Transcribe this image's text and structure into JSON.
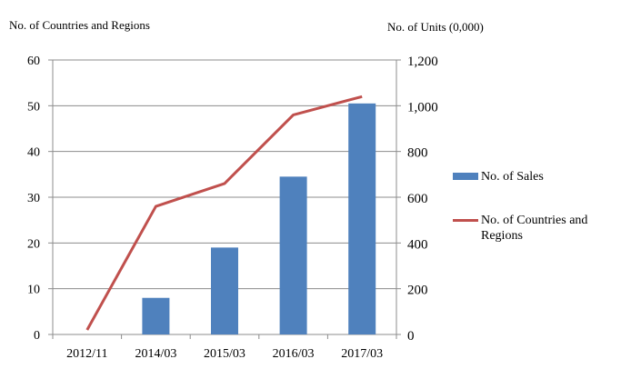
{
  "chart_data": {
    "type": "bar+line",
    "categories": [
      "2012/11",
      "2014/03",
      "2015/03",
      "2016/03",
      "2017/03"
    ],
    "left_axis_title": "No. of Countries and Regions",
    "right_axis_title": "No. of Units (0,000)",
    "left_ylim": [
      0,
      60
    ],
    "left_ticks": [
      "0",
      "10",
      "20",
      "30",
      "40",
      "50",
      "60"
    ],
    "right_ylim": [
      0,
      1200
    ],
    "right_ticks": [
      "0",
      "200",
      "400",
      "600",
      "800",
      "1,000",
      "1,200"
    ],
    "grid": true,
    "legend_position": "right",
    "series": [
      {
        "name": "No. of Sales",
        "type": "bar",
        "axis": "right",
        "color": "#4f81bd",
        "values": [
          0,
          160,
          380,
          690,
          1010
        ]
      },
      {
        "name": "No. of Countries and Regions",
        "type": "line",
        "axis": "left",
        "color": "#c0504d",
        "values": [
          1,
          28,
          33,
          48,
          52
        ]
      }
    ]
  }
}
